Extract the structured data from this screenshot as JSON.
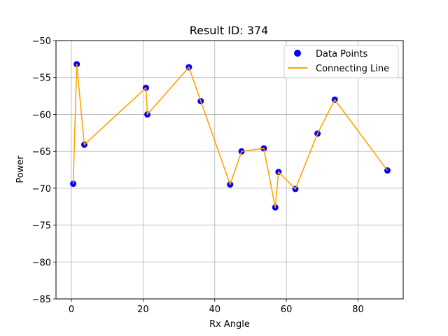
{
  "chart_data": {
    "type": "scatter",
    "title": "Result ID: 374",
    "xlabel": "Rx Angle",
    "ylabel": "Power",
    "xlim": [
      -4.3,
      92.6
    ],
    "ylim": [
      -85,
      -50
    ],
    "xticks": [
      0,
      20,
      40,
      60,
      80
    ],
    "xtick_labels": [
      "0",
      "20",
      "40",
      "60",
      "80"
    ],
    "yticks": [
      -85,
      -80,
      -75,
      -70,
      -65,
      -60,
      -55,
      -50
    ],
    "ytick_labels": [
      "−85",
      "−80",
      "−75",
      "−70",
      "−65",
      "−60",
      "−55",
      "−50"
    ],
    "grid": true,
    "legend_position": "top-right",
    "series": [
      {
        "name": "Data Points",
        "kind": "scatter",
        "color": "#0000ff",
        "x": [
          0.5,
          1.5,
          3.6,
          20.8,
          21.2,
          32.8,
          36.1,
          44.3,
          47.5,
          53.7,
          56.9,
          57.8,
          62.5,
          68.7,
          73.5,
          88.2
        ],
        "y": [
          -69.4,
          -53.2,
          -64.1,
          -56.4,
          -60.0,
          -53.6,
          -58.2,
          -69.5,
          -65.0,
          -64.6,
          -72.6,
          -67.8,
          -70.1,
          -62.6,
          -58.0,
          -67.6
        ]
      },
      {
        "name": "Connecting Line",
        "kind": "line",
        "color": "#ffa500",
        "x": [
          0.5,
          1.5,
          3.6,
          20.8,
          21.2,
          32.8,
          36.1,
          44.3,
          47.5,
          53.7,
          56.9,
          57.8,
          62.5,
          68.7,
          73.5,
          88.2
        ],
        "y": [
          -69.4,
          -53.2,
          -64.1,
          -56.4,
          -60.0,
          -53.6,
          -58.2,
          -69.5,
          -65.0,
          -64.6,
          -72.6,
          -67.8,
          -70.1,
          -62.6,
          -58.0,
          -67.6
        ]
      }
    ]
  }
}
